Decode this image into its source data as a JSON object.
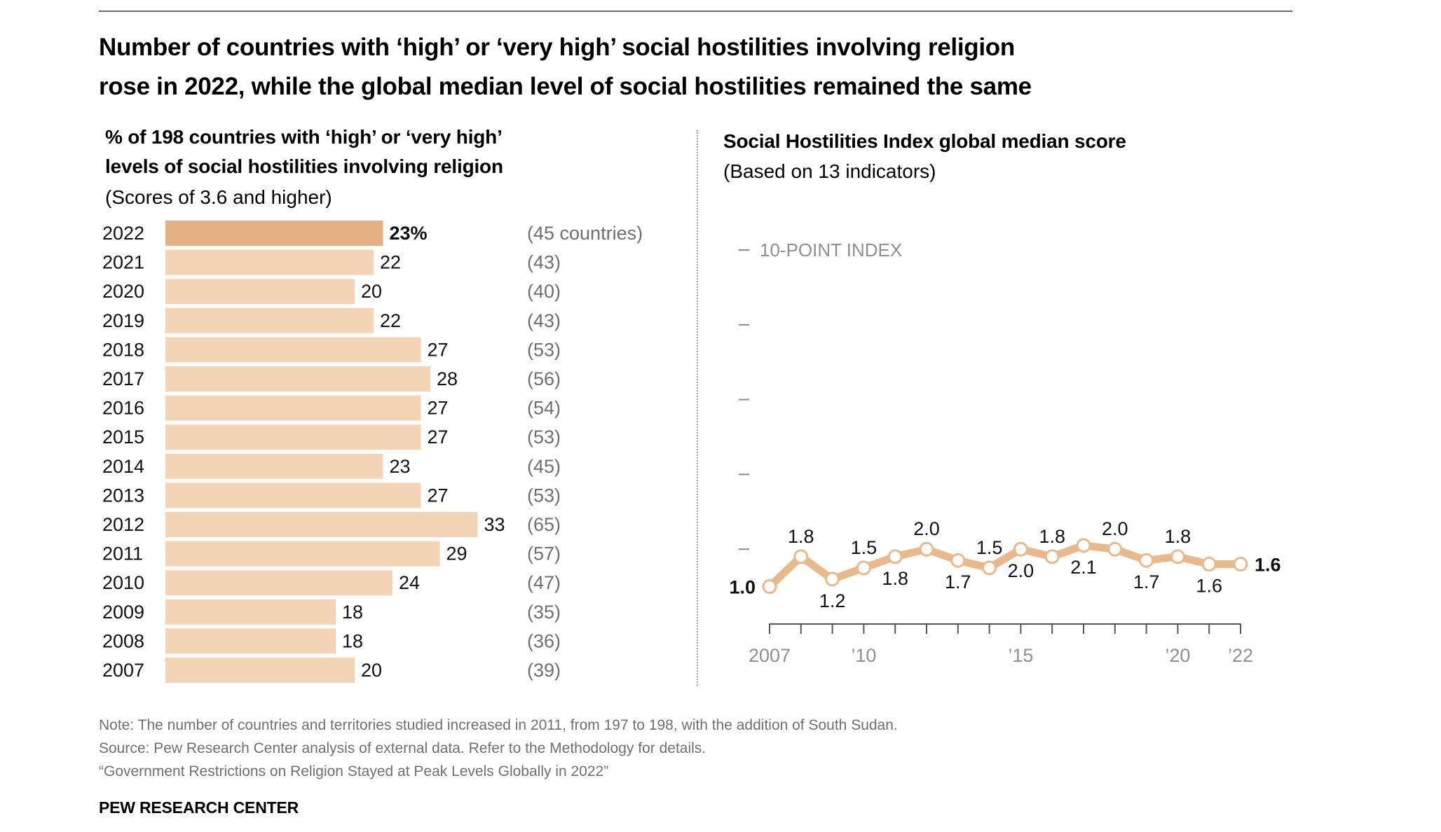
{
  "title": {
    "line1": "Number of countries with ‘high’ or ‘very high’ social hostilities involving religion",
    "line2": "rose in 2022, while the global median level of social hostilities remained the same"
  },
  "notes": {
    "note": "Note: The number of countries and territories studied increased in 2011, from 197 to 198, with the addition of South Sudan.",
    "source": "Source: Pew Research Center analysis of external data. Refer to the Methodology for details.",
    "report": "“Government Restrictions on Religion Stayed at Peak Levels Globally in 2022”",
    "brand": "PEW RESEARCH CENTER"
  },
  "colors": {
    "highlight_bar": "#e4b083",
    "bar": "#f3d4b6",
    "line": "#e9b98b"
  },
  "chart_data": [
    {
      "type": "bar",
      "orientation": "horizontal",
      "title_line1": "% of 198 countries with ‘high’ or ‘very high’",
      "title_line2": "levels of social hostilities involving religion",
      "subtitle": "(Scores of 3.6 and higher)",
      "categories": [
        "2022",
        "2021",
        "2020",
        "2019",
        "2018",
        "2017",
        "2016",
        "2015",
        "2014",
        "2013",
        "2012",
        "2011",
        "2010",
        "2009",
        "2008",
        "2007"
      ],
      "values": [
        23,
        22,
        20,
        22,
        27,
        28,
        27,
        27,
        23,
        27,
        33,
        29,
        24,
        18,
        18,
        20
      ],
      "value_labels": [
        "23%",
        "22",
        "20",
        "22",
        "27",
        "28",
        "27",
        "27",
        "23",
        "27",
        "33",
        "29",
        "24",
        "18",
        "18",
        "20"
      ],
      "count_labels": [
        "(45 countries)",
        "(43)",
        "(40)",
        "(43)",
        "(53)",
        "(56)",
        "(54)",
        "(53)",
        "(45)",
        "(53)",
        "(65)",
        "(57)",
        "(47)",
        "(35)",
        "(36)",
        "(39)"
      ],
      "highlight": "2022"
    },
    {
      "type": "line",
      "title": "Social Hostilities Index global median score",
      "subtitle": "(Based on 13 indicators)",
      "ylabel": "10-POINT INDEX",
      "ylim": [
        0,
        10
      ],
      "yticks": [
        0,
        2,
        4,
        6,
        8,
        10
      ],
      "x": [
        2007,
        2008,
        2009,
        2010,
        2011,
        2012,
        2013,
        2014,
        2015,
        2016,
        2017,
        2018,
        2019,
        2020,
        2021,
        2022
      ],
      "values": [
        1.0,
        1.8,
        1.2,
        1.5,
        1.8,
        2.0,
        1.7,
        1.5,
        2.0,
        1.8,
        2.1,
        2.0,
        1.7,
        1.8,
        1.6,
        1.6
      ],
      "labels": [
        "1.0",
        "1.8",
        "1.2",
        "1.5",
        "1.8",
        "2.0",
        "1.7",
        "1.5",
        "2.0",
        "1.8",
        "2.1",
        "2.0",
        "1.7",
        "1.8",
        "1.6",
        "1.6"
      ],
      "xtick_labels": {
        "2007": "2007",
        "2010": "’10",
        "2015": "’15",
        "2020": "’20",
        "2022": "’22"
      }
    }
  ]
}
